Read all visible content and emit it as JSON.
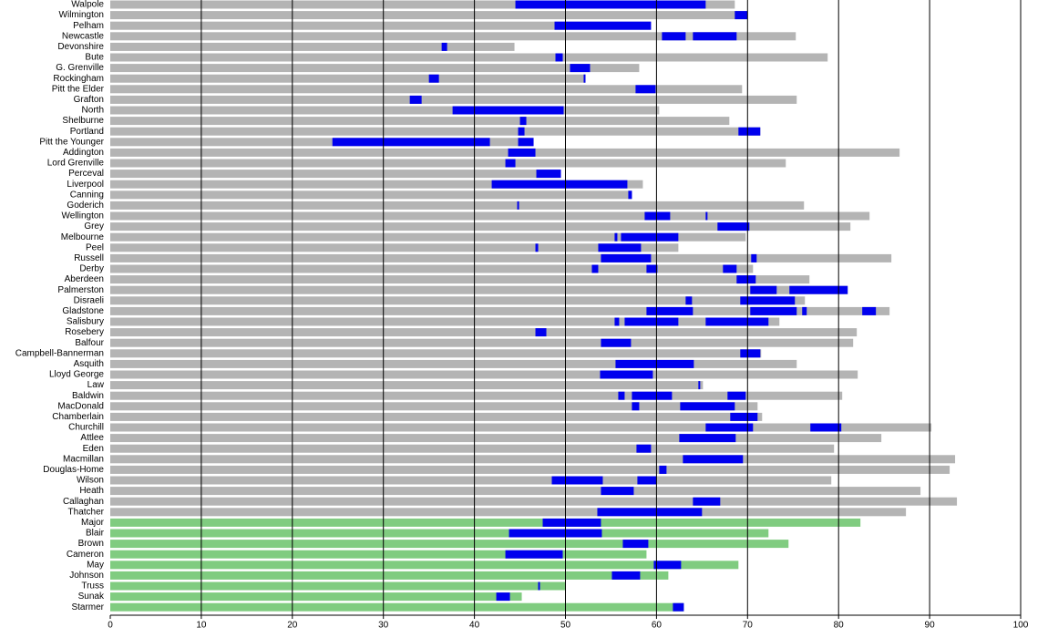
{
  "chart_data": {
    "type": "bar",
    "categories": [
      "Walpole",
      "Wilmington",
      "Pelham",
      "Newcastle",
      "Devonshire",
      "Bute",
      "G. Grenville",
      "Rockingham",
      "Pitt the Elder",
      "Grafton",
      "North",
      "Shelburne",
      "Portland",
      "Pitt the Younger",
      "Addington",
      "Lord Grenville",
      "Perceval",
      "Liverpool",
      "Canning",
      "Goderich",
      "Wellington",
      "Grey",
      "Melbourne",
      "Peel",
      "Russell",
      "Derby",
      "Aberdeen",
      "Palmerston",
      "Disraeli",
      "Gladstone",
      "Salisbury",
      "Rosebery",
      "Balfour",
      "Campbell-Bannerman",
      "Asquith",
      "Lloyd George",
      "Law",
      "Baldwin",
      "MacDonald",
      "Chamberlain",
      "Churchill",
      "Attlee",
      "Eden",
      "Macmillan",
      "Douglas-Home",
      "Wilson",
      "Heath",
      "Callaghan",
      "Thatcher",
      "Major",
      "Blair",
      "Brown",
      "Cameron",
      "May",
      "Johnson",
      "Truss",
      "Sunak",
      "Starmer"
    ],
    "values": [
      68.6,
      70.0,
      59.4,
      75.3,
      44.4,
      78.8,
      58.1,
      52.2,
      69.4,
      75.4,
      60.3,
      68.0,
      71.4,
      46.5,
      86.7,
      74.2,
      49.5,
      58.5,
      57.3,
      76.2,
      83.4,
      81.3,
      69.8,
      62.4,
      85.8,
      70.6,
      76.8,
      81.0,
      76.3,
      85.6,
      73.5,
      82.0,
      81.6,
      71.5,
      75.4,
      82.1,
      65.1,
      80.4,
      71.1,
      71.6,
      90.2,
      84.7,
      79.5,
      92.8,
      92.2,
      79.2,
      89.0,
      93.0,
      87.4,
      82.4,
      72.3,
      74.5,
      58.9,
      69.0,
      61.3,
      50.0,
      45.2,
      63.0
    ],
    "living": [
      false,
      false,
      false,
      false,
      false,
      false,
      false,
      false,
      false,
      false,
      false,
      false,
      false,
      false,
      false,
      false,
      false,
      false,
      false,
      false,
      false,
      false,
      false,
      false,
      false,
      false,
      false,
      false,
      false,
      false,
      false,
      false,
      false,
      false,
      false,
      false,
      false,
      false,
      false,
      false,
      false,
      false,
      false,
      false,
      false,
      false,
      false,
      false,
      false,
      true,
      true,
      true,
      true,
      true,
      true,
      true,
      true,
      true
    ],
    "terms": [
      [
        [
          44.5,
          65.4
        ]
      ],
      [
        [
          68.6,
          70.0
        ]
      ],
      [
        [
          48.8,
          59.4
        ]
      ],
      [
        [
          60.6,
          63.2
        ],
        [
          64.0,
          68.8
        ]
      ],
      [
        [
          36.4,
          37.0
        ]
      ],
      [
        [
          48.9,
          49.7
        ]
      ],
      [
        [
          50.5,
          52.7
        ]
      ],
      [
        [
          35.0,
          36.1
        ],
        [
          52.0,
          52.2
        ]
      ],
      [
        [
          57.7,
          59.9
        ]
      ],
      [
        [
          32.9,
          34.2
        ]
      ],
      [
        [
          37.6,
          49.8
        ]
      ],
      [
        [
          45.0,
          45.7
        ]
      ],
      [
        [
          44.8,
          45.5
        ],
        [
          69.0,
          71.4
        ]
      ],
      [
        [
          24.4,
          41.7
        ],
        [
          44.8,
          46.5
        ]
      ],
      [
        [
          43.7,
          46.7
        ]
      ],
      [
        [
          43.4,
          44.5
        ]
      ],
      [
        [
          46.8,
          49.5
        ]
      ],
      [
        [
          41.9,
          56.8
        ]
      ],
      [
        [
          56.9,
          57.3
        ]
      ],
      [
        [
          44.7,
          44.9
        ]
      ],
      [
        [
          58.7,
          61.5
        ],
        [
          65.4,
          65.6
        ]
      ],
      [
        [
          66.7,
          70.2
        ]
      ],
      [
        [
          55.4,
          55.7
        ],
        [
          56.1,
          62.4
        ]
      ],
      [
        [
          46.7,
          47.0
        ],
        [
          53.6,
          58.3
        ]
      ],
      [
        [
          53.9,
          59.4
        ],
        [
          70.4,
          71.0
        ]
      ],
      [
        [
          52.9,
          53.6
        ],
        [
          58.9,
          60.1
        ],
        [
          67.3,
          68.8
        ]
      ],
      [
        [
          68.8,
          70.9
        ]
      ],
      [
        [
          70.3,
          73.2
        ],
        [
          74.6,
          81.0
        ]
      ],
      [
        [
          63.2,
          63.9
        ],
        [
          69.2,
          75.2
        ]
      ],
      [
        [
          58.9,
          64.0
        ],
        [
          70.3,
          75.4
        ],
        [
          76.0,
          76.5
        ],
        [
          82.6,
          84.1
        ]
      ],
      [
        [
          55.4,
          55.9
        ],
        [
          56.5,
          62.4
        ],
        [
          65.4,
          72.3
        ]
      ],
      [
        [
          46.7,
          47.9
        ]
      ],
      [
        [
          53.9,
          57.2
        ]
      ],
      [
        [
          69.2,
          71.4
        ]
      ],
      [
        [
          55.5,
          64.1
        ]
      ],
      [
        [
          53.8,
          59.6
        ]
      ],
      [
        [
          64.6,
          64.8
        ]
      ],
      [
        [
          55.8,
          56.5
        ],
        [
          57.3,
          61.7
        ],
        [
          67.8,
          69.8
        ]
      ],
      [
        [
          57.3,
          58.1
        ],
        [
          62.6,
          68.6
        ]
      ],
      [
        [
          68.1,
          71.1
        ]
      ],
      [
        [
          65.4,
          70.6
        ],
        [
          76.9,
          80.3
        ]
      ],
      [
        [
          62.5,
          68.7
        ]
      ],
      [
        [
          57.8,
          59.4
        ]
      ],
      [
        [
          62.9,
          69.5
        ]
      ],
      [
        [
          60.3,
          61.1
        ]
      ],
      [
        [
          48.5,
          54.1
        ],
        [
          57.9,
          60.0
        ]
      ],
      [
        [
          53.9,
          57.5
        ]
      ],
      [
        [
          64.0,
          67.0
        ]
      ],
      [
        [
          53.5,
          65.0
        ]
      ],
      [
        [
          47.5,
          53.9
        ]
      ],
      [
        [
          43.8,
          54.0
        ]
      ],
      [
        [
          56.3,
          59.1
        ]
      ],
      [
        [
          43.4,
          49.7
        ]
      ],
      [
        [
          59.7,
          62.7
        ]
      ],
      [
        [
          55.1,
          58.2
        ]
      ],
      [
        [
          47.0,
          47.2
        ]
      ],
      [
        [
          42.4,
          43.9
        ]
      ],
      [
        [
          61.8,
          63.0
        ]
      ]
    ],
    "bar_color": "#b4b4b4",
    "living_color": "#80cc80",
    "term_color": "#0000ee",
    "xlim": [
      0,
      100
    ],
    "xticks": [
      0,
      10,
      20,
      30,
      40,
      50,
      60,
      70,
      80,
      90,
      100
    ],
    "grid": true
  }
}
